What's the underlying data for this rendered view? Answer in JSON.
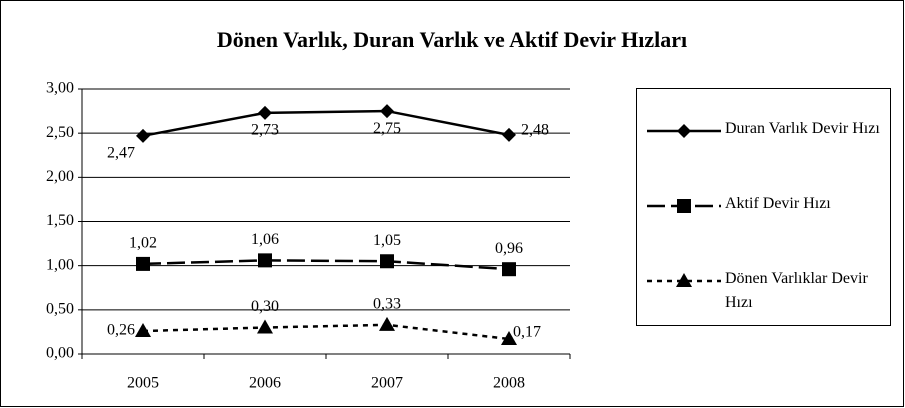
{
  "chart_data": {
    "type": "line",
    "title": "Dönen Varlık, Duran Varlık ve Aktif Devir Hızları",
    "categories": [
      "2005",
      "2006",
      "2007",
      "2008"
    ],
    "series": [
      {
        "name": "Duran Varlık Devir Hızı",
        "color": "#000000",
        "marker": "diamond",
        "dash": "solid",
        "values": [
          2.47,
          2.73,
          2.75,
          2.48
        ],
        "value_labels": [
          "2,47",
          "2,73",
          "2,75",
          "2,48"
        ]
      },
      {
        "name": "Aktif Devir Hızı",
        "color": "#000000",
        "marker": "square",
        "dash": "long-dash",
        "values": [
          1.02,
          1.06,
          1.05,
          0.96
        ],
        "value_labels": [
          "1,02",
          "1,06",
          "1,05",
          "0,96"
        ]
      },
      {
        "name": "Dönen Varlıklar Devir Hızı",
        "color": "#000000",
        "marker": "triangle",
        "dash": "dot",
        "values": [
          0.26,
          0.3,
          0.33,
          0.17
        ],
        "value_labels": [
          "0,26",
          "0,30",
          "0,33",
          "0,17"
        ]
      }
    ],
    "ylim": [
      0,
      3
    ],
    "yticks": [
      {
        "value": 0,
        "label": "0,00"
      },
      {
        "value": 0.5,
        "label": "0,50"
      },
      {
        "value": 1,
        "label": "1,00"
      },
      {
        "value": 1.5,
        "label": "1,50"
      },
      {
        "value": 2,
        "label": "2,00"
      },
      {
        "value": 2.5,
        "label": "2,50"
      },
      {
        "value": 3,
        "label": "3,00"
      }
    ],
    "grid": true,
    "legend": "right"
  }
}
